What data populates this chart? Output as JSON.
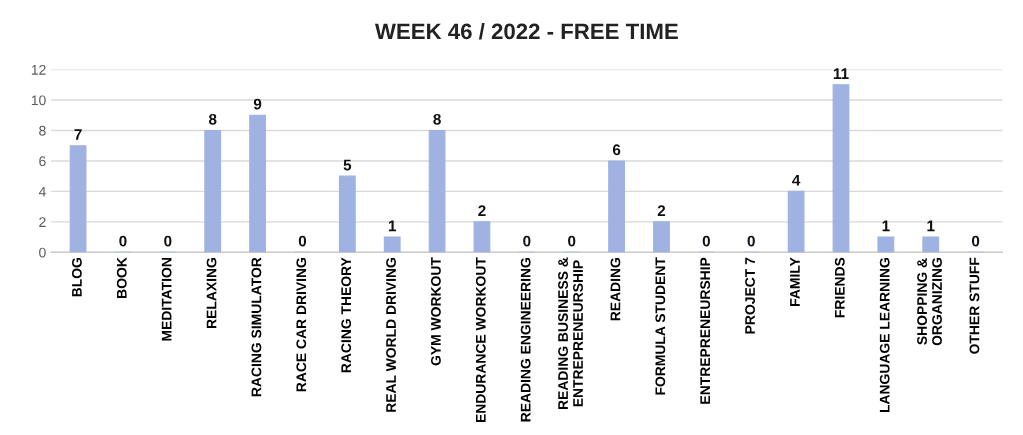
{
  "chart_data": {
    "type": "bar",
    "title": "WEEK 46 / 2022 - FREE TIME",
    "categories": [
      "BLOG",
      "BOOK",
      "MEDITATION",
      "RELAXING",
      "RACING SIMULATOR",
      "RACE CAR DRIVING",
      "RACING THEORY",
      "REAL WORLD DRIVING",
      "GYM WORKOUT",
      "ENDURANCE WORKOUT",
      "READING ENGINEERING",
      "READING BUSINESS &\nENTREPRENEURSHIP",
      "READING",
      "FORMULA STUDENT",
      "ENTREPRENEURSHIP",
      "PROJECT 7",
      "FAMILY",
      "FRIENDS",
      "LANGUAGE LEARNING",
      "SHOPPING &\nORGANIZING",
      "OTHER STUFF"
    ],
    "values": [
      7,
      0,
      0,
      8,
      9,
      0,
      5,
      1,
      8,
      2,
      0,
      0,
      6,
      2,
      0,
      0,
      4,
      11,
      1,
      1,
      0
    ],
    "color": "#9fb2e2",
    "ylim": [
      0,
      12
    ],
    "yticks": [
      0,
      2,
      4,
      6,
      8,
      10,
      12
    ],
    "grid": "y",
    "data_labels": true
  }
}
